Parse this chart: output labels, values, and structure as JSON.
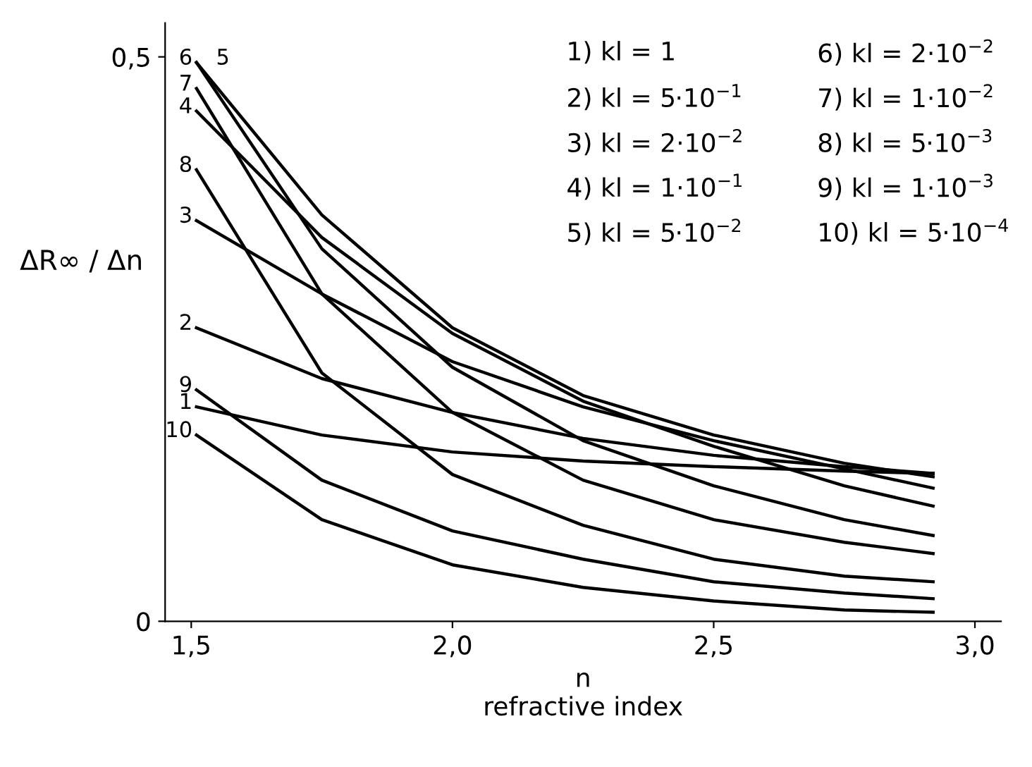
{
  "chart_data": {
    "type": "line",
    "xlabel": "n\nrefractive index",
    "ylabel": "ΔR∞ / Δn",
    "x": [
      1.51,
      1.75,
      2.0,
      2.25,
      2.5,
      2.75,
      2.92
    ],
    "series": [
      {
        "name": "1",
        "color": "#000000",
        "values": [
          0.19,
          0.165,
          0.15,
          0.142,
          0.137,
          0.133,
          0.131
        ]
      },
      {
        "name": "2",
        "color": "#000000",
        "values": [
          0.26,
          0.215,
          0.185,
          0.162,
          0.147,
          0.137,
          0.131
        ]
      },
      {
        "name": "3",
        "color": "#000000",
        "values": [
          0.355,
          0.29,
          0.23,
          0.19,
          0.16,
          0.135,
          0.118
        ]
      },
      {
        "name": "4",
        "color": "#000000",
        "values": [
          0.452,
          0.34,
          0.255,
          0.195,
          0.155,
          0.12,
          0.102
        ]
      },
      {
        "name": "5",
        "color": "#000000",
        "values": [
          0.495,
          0.36,
          0.26,
          0.2,
          0.165,
          0.14,
          0.128
        ]
      },
      {
        "name": "6",
        "color": "#000000",
        "values": [
          0.495,
          0.33,
          0.225,
          0.16,
          0.12,
          0.09,
          0.076
        ]
      },
      {
        "name": "7",
        "color": "#000000",
        "values": [
          0.472,
          0.29,
          0.185,
          0.125,
          0.09,
          0.07,
          0.06
        ]
      },
      {
        "name": "8",
        "color": "#000000",
        "values": [
          0.4,
          0.22,
          0.13,
          0.085,
          0.055,
          0.04,
          0.035
        ]
      },
      {
        "name": "9",
        "color": "#000000",
        "values": [
          0.205,
          0.125,
          0.08,
          0.055,
          0.035,
          0.025,
          0.02
        ]
      },
      {
        "name": "10",
        "color": "#000000",
        "values": [
          0.165,
          0.09,
          0.05,
          0.03,
          0.018,
          0.01,
          0.008
        ]
      }
    ],
    "annotations": [
      "1) kl = 1",
      "2) kl = 5·10$^{−1}$",
      "3) kl = 2·10$^{−2}$",
      "4) kl = 1·10$^{−1}$",
      "5) kl = 5·10$^{−2}$",
      "6) kl = 2·10$^{−2}$",
      "7) kl = 1·10$^{−2}$",
      "8) kl = 5·10$^{−3}$",
      "9) kl = 1·10$^{−3}$",
      "10) kl = 5·10$^{−4}$"
    ],
    "xlim": [
      1.45,
      3.05
    ],
    "ylim": [
      0,
      0.53
    ],
    "xticks": [
      {
        "value": 1.5,
        "label": "1,5"
      },
      {
        "value": 2.0,
        "label": "2,0"
      },
      {
        "value": 2.5,
        "label": "2,5"
      },
      {
        "value": 3.0,
        "label": "3,0"
      }
    ],
    "yticks": [
      {
        "value": 0,
        "label": "0"
      },
      {
        "value": 0.5,
        "label": "0,5"
      }
    ],
    "grid": false,
    "marker": "none",
    "line_style": "solid"
  }
}
